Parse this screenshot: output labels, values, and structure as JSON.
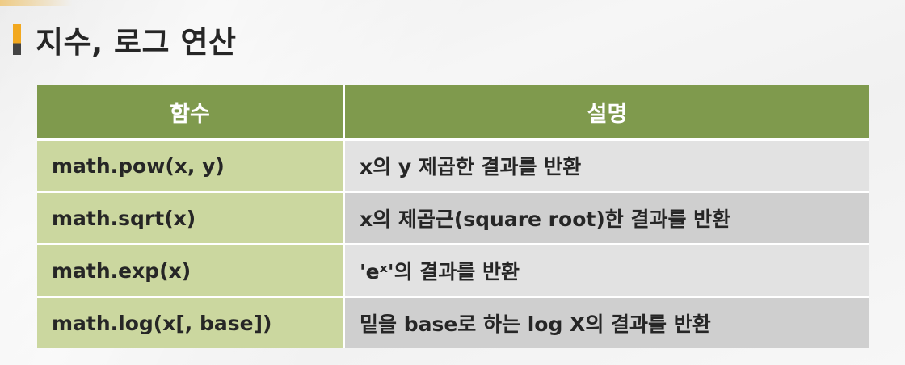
{
  "title": "지수, 로그 연산",
  "table": {
    "headers": [
      "함수",
      "설명"
    ],
    "rows": [
      {
        "func": "math.pow(x, y)",
        "desc": "x의 y 제곱한 결과를 반환"
      },
      {
        "func": "math.sqrt(x)",
        "desc": "x의 제곱근(square root)한 결과를 반환"
      },
      {
        "func": "math.exp(x)",
        "desc": "'eˣ'의 결과를 반환"
      },
      {
        "func": "math.log(x[, base])",
        "desc": "밑을 base로 하는 log X의 결과를 반환"
      }
    ]
  },
  "colors": {
    "header_bg": "#7f9a4d",
    "func_cell_bg": "#cbd79f",
    "desc_cell_bg_light": "#e2e2e2",
    "desc_cell_bg_dark": "#cfcfcf",
    "title_accent": "#f2a81f"
  }
}
